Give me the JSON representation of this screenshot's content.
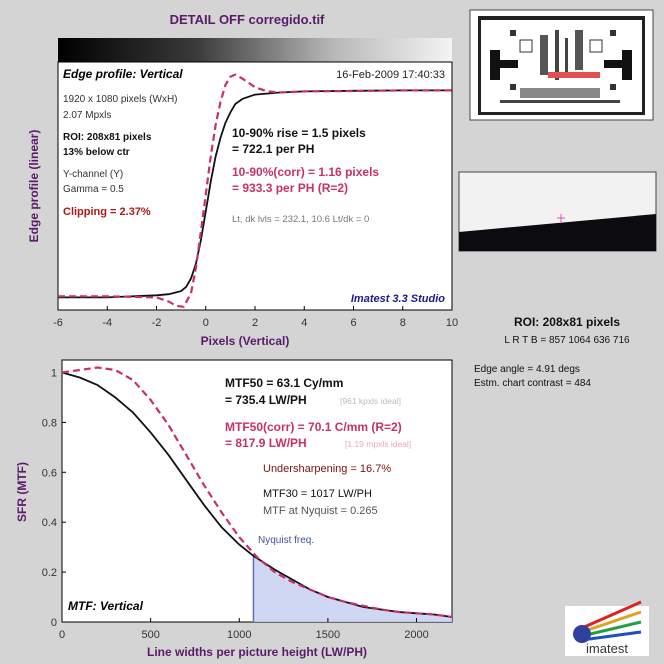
{
  "title": "DETAIL OFF corregido.tif",
  "colors": {
    "background": "#d4d4d4",
    "plot_bg": "#ffffff",
    "title": "#5a1a6a",
    "magenta": "#c8306a",
    "crimson": "#b01818",
    "navy": "#1a1a8a",
    "gray": "#666666",
    "light_gray": "#b0b0b0",
    "nyquist_fill": "#c8d0f0",
    "nyquist_line": "#6070c0",
    "nyquist_label": "#4050a0"
  },
  "edge_panel": {
    "heading": "Edge profile: Vertical",
    "timestamp": "16-Feb-2009 17:40:33",
    "info": [
      "1920 x 1080 pixels (WxH)",
      "2.07 Mpxls"
    ],
    "roi_lines": [
      "ROI:  208x81 pixels",
      "13% below ctr"
    ],
    "channel_lines": [
      "Y-channel  (Y)",
      "Gamma = 0.5"
    ],
    "clipping": "Clipping =   2.37%",
    "rise_lines": [
      "10-90% rise = 1.5 pixels",
      "= 722.1 per PH"
    ],
    "corr_lines": [
      "10-90%(corr) = 1.16 pixels",
      "= 933.3 per PH  (R=2)"
    ],
    "levels": "Lt, dk lvls = 232.1, 10.6   Lt/dk = 0",
    "software": "Imatest 3.3 Studio"
  },
  "roi_side": {
    "title": "ROI:  208x81 pixels",
    "coords": "L R  T B = 857 1064  636 716",
    "edge_angle": "Edge angle = 4.91 degs",
    "contrast": "Estm. chart contrast = 484"
  },
  "mtf_panel": {
    "heading": "MTF: Vertical",
    "mtf50_lines": [
      "MTF50 = 63.1 Cy/mm",
      "= 735.4 LW/PH"
    ],
    "mtf50_ideal": "[961 kpxls ideal]",
    "mtf50corr_lines": [
      "MTF50(corr) = 70.1 C/mm  (R=2)",
      "= 817.9 LW/PH"
    ],
    "mtf50corr_ideal": "[1.19 mpxls ideal]",
    "undersharpening": "Undersharpening = 16.7%",
    "mtf30": "MTF30 = 1017 LW/PH",
    "nyquist_mtf": "MTF at Nyquist = 0.265",
    "nyquist_label": "Nyquist freq."
  },
  "logo_text": "imatest",
  "chart_data": [
    {
      "type": "line",
      "xlabel": "Pixels (Vertical)",
      "ylabel": "Edge profile (linear)",
      "xlim": [
        -6,
        10
      ],
      "xticks": [
        -6,
        -4,
        -2,
        0,
        2,
        4,
        6,
        8,
        10
      ],
      "series": [
        {
          "x": [
            -6,
            -4,
            -2,
            -1.5,
            -1,
            -0.8,
            -0.6,
            -0.4,
            -0.2,
            0,
            0.2,
            0.4,
            0.6,
            0.8,
            1,
            1.2,
            1.5,
            2,
            3,
            4,
            6,
            8,
            10
          ],
          "y": [
            0.01,
            0.01,
            0.02,
            0.025,
            0.04,
            0.06,
            0.1,
            0.17,
            0.28,
            0.42,
            0.56,
            0.68,
            0.77,
            0.84,
            0.89,
            0.93,
            0.955,
            0.975,
            0.985,
            0.99,
            0.993,
            0.995,
            0.995
          ],
          "color": "#111111",
          "dashed": false
        },
        {
          "x": [
            -6,
            -4,
            -2,
            -1.5,
            -1.2,
            -0.9,
            -0.6,
            -0.4,
            -0.2,
            0,
            0.2,
            0.4,
            0.6,
            0.8,
            1,
            1.2,
            1.5,
            2,
            2.5,
            3,
            4,
            6,
            8,
            10
          ],
          "y": [
            0.015,
            0.015,
            0.01,
            -0.01,
            -0.03,
            -0.035,
            0.03,
            0.15,
            0.32,
            0.5,
            0.68,
            0.83,
            0.94,
            1.02,
            1.06,
            1.07,
            1.05,
            1.01,
            0.99,
            0.985,
            0.99,
            0.992,
            0.995,
            0.995
          ],
          "color": "#c8306a",
          "dashed": true
        }
      ]
    },
    {
      "type": "line",
      "xlabel": "Line widths per picture height (LW/PH)",
      "ylabel": "SFR (MTF)",
      "xlim": [
        0,
        2200
      ],
      "ylim": [
        0,
        1.05
      ],
      "xticks": [
        0,
        500,
        1000,
        1500,
        2000
      ],
      "yticks": [
        0,
        0.2,
        0.4,
        0.6,
        0.8,
        1
      ],
      "nyquist_x": 1080,
      "series": [
        {
          "x": [
            0,
            100,
            200,
            300,
            400,
            500,
            600,
            700,
            800,
            900,
            1000,
            1080,
            1200,
            1300,
            1400,
            1500,
            1600,
            1700,
            1800,
            1900,
            2000,
            2100,
            2200
          ],
          "y": [
            1.0,
            0.98,
            0.95,
            0.9,
            0.84,
            0.76,
            0.67,
            0.57,
            0.47,
            0.38,
            0.31,
            0.265,
            0.21,
            0.17,
            0.13,
            0.1,
            0.08,
            0.06,
            0.05,
            0.04,
            0.035,
            0.03,
            0.02
          ],
          "color": "#111111",
          "dashed": false
        },
        {
          "x": [
            0,
            100,
            200,
            300,
            400,
            500,
            600,
            700,
            800,
            900,
            1000,
            1100,
            1200,
            1300,
            1400,
            1500,
            1600,
            1700,
            1800,
            1900,
            2000,
            2100,
            2200
          ],
          "y": [
            1.0,
            1.01,
            1.02,
            1.01,
            0.97,
            0.89,
            0.79,
            0.67,
            0.55,
            0.44,
            0.34,
            0.26,
            0.2,
            0.16,
            0.13,
            0.1,
            0.08,
            0.065,
            0.05,
            0.04,
            0.035,
            0.03,
            0.02
          ],
          "color": "#c8306a",
          "dashed": true
        }
      ]
    }
  ]
}
